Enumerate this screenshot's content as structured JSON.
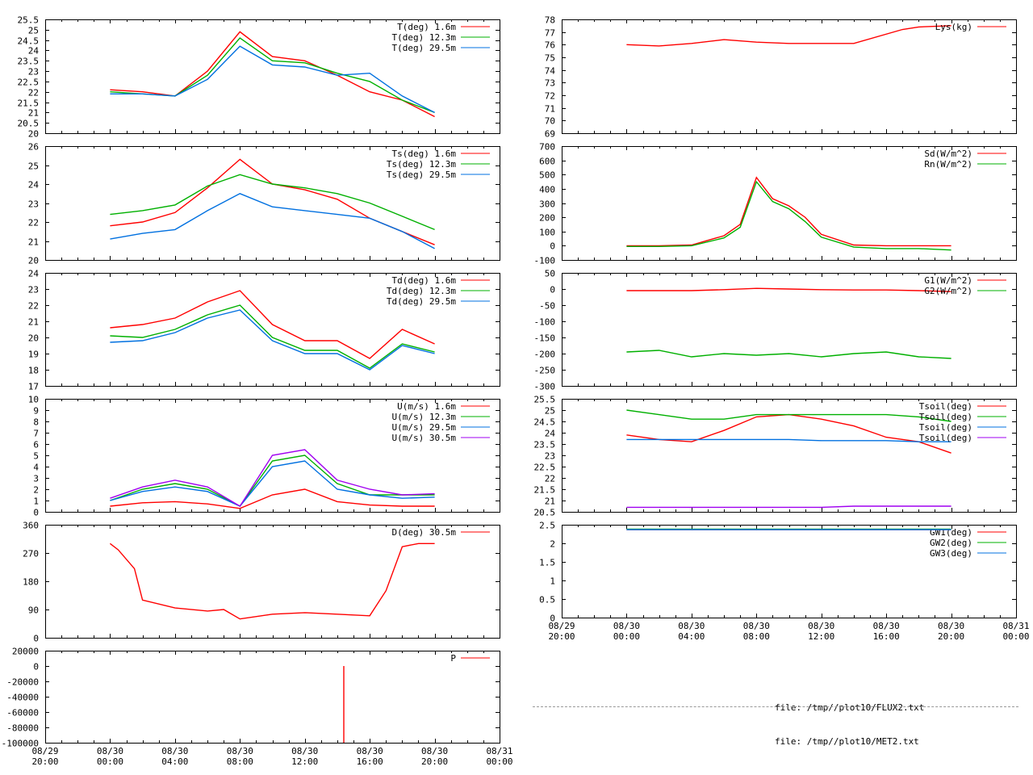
{
  "colors": {
    "red": "#ff0000",
    "green": "#00b000",
    "blue": "#0070e0",
    "purple": "#a000f0",
    "axis": "#000000"
  },
  "time_ticks": [
    "08/29\n20:00",
    "08/30\n00:00",
    "08/30\n04:00",
    "08/30\n08:00",
    "08/30\n12:00",
    "08/30\n16:00",
    "08/30\n20:00",
    "08/31\n00:00"
  ],
  "files": [
    "file: /tmp//plot10/FLUX2.txt",
    "file: /tmp//plot10/MET2.txt"
  ],
  "chart_data": [
    {
      "id": "T",
      "type": "line",
      "ylim": [
        20,
        25.5
      ],
      "yticks": [
        "20",
        "20.5",
        "21",
        "21.5",
        "22",
        "22.5",
        "23",
        "23.5",
        "24",
        "24.5",
        "25",
        "25.5"
      ],
      "x_hours": [
        4.0,
        6.0,
        8.0,
        10.0,
        12.0,
        14.0,
        16.0,
        18.0,
        20.0,
        22.0,
        24.0
      ],
      "series": [
        {
          "name": "T(deg)  1.6m",
          "color": "red",
          "values": [
            22.1,
            22.0,
            21.8,
            23.0,
            24.9,
            23.7,
            23.5,
            22.8,
            22.0,
            21.6,
            20.8
          ]
        },
        {
          "name": "T(deg) 12.3m",
          "color": "green",
          "values": [
            22.0,
            21.9,
            21.8,
            22.8,
            24.6,
            23.5,
            23.4,
            22.9,
            22.5,
            21.6,
            21.0
          ]
        },
        {
          "name": "T(deg) 29.5m",
          "color": "blue",
          "values": [
            21.9,
            21.9,
            21.8,
            22.6,
            24.2,
            23.3,
            23.2,
            22.8,
            22.9,
            21.8,
            21.0
          ]
        }
      ]
    },
    {
      "id": "Ts",
      "type": "line",
      "ylim": [
        20,
        26
      ],
      "yticks": [
        "20",
        "21",
        "22",
        "23",
        "24",
        "25",
        "26"
      ],
      "x_hours": [
        4.0,
        6.0,
        8.0,
        10.0,
        12.0,
        14.0,
        16.0,
        18.0,
        20.0,
        22.0,
        24.0
      ],
      "series": [
        {
          "name": "Ts(deg)  1.6m",
          "color": "red",
          "values": [
            21.8,
            22.0,
            22.5,
            23.8,
            25.3,
            24.0,
            23.7,
            23.2,
            22.2,
            21.5,
            20.8
          ]
        },
        {
          "name": "Ts(deg) 12.3m",
          "color": "green",
          "values": [
            22.4,
            22.6,
            22.9,
            23.9,
            24.5,
            24.0,
            23.8,
            23.5,
            23.0,
            22.3,
            21.6
          ]
        },
        {
          "name": "Ts(deg) 29.5m",
          "color": "blue",
          "values": [
            21.1,
            21.4,
            21.6,
            22.6,
            23.5,
            22.8,
            22.6,
            22.4,
            22.2,
            21.5,
            20.6
          ]
        }
      ]
    },
    {
      "id": "Td",
      "type": "line",
      "ylim": [
        17,
        24
      ],
      "yticks": [
        "17",
        "18",
        "19",
        "20",
        "21",
        "22",
        "23",
        "24"
      ],
      "x_hours": [
        4.0,
        6.0,
        8.0,
        10.0,
        12.0,
        14.0,
        16.0,
        18.0,
        20.0,
        22.0,
        24.0
      ],
      "series": [
        {
          "name": "Td(deg)  1.6m",
          "color": "red",
          "values": [
            20.6,
            20.8,
            21.2,
            22.2,
            22.9,
            20.8,
            19.8,
            19.8,
            18.7,
            20.5,
            19.6
          ]
        },
        {
          "name": "Td(deg) 12.3m",
          "color": "green",
          "values": [
            20.1,
            20.0,
            20.5,
            21.4,
            22.0,
            20.0,
            19.2,
            19.2,
            18.1,
            19.6,
            19.1
          ]
        },
        {
          "name": "Td(deg) 29.5m",
          "color": "blue",
          "values": [
            19.7,
            19.8,
            20.3,
            21.2,
            21.7,
            19.8,
            19.0,
            19.0,
            18.0,
            19.5,
            19.0
          ]
        }
      ]
    },
    {
      "id": "U",
      "type": "line",
      "ylim": [
        0,
        10
      ],
      "yticks": [
        "0",
        "1",
        "2",
        "3",
        "4",
        "5",
        "6",
        "7",
        "8",
        "9",
        "10"
      ],
      "x_hours": [
        4.0,
        6.0,
        8.0,
        10.0,
        12.0,
        14.0,
        16.0,
        18.0,
        20.0,
        22.0,
        24.0
      ],
      "series": [
        {
          "name": "U(m/s)  1.6m",
          "color": "red",
          "values": [
            0.5,
            0.8,
            0.9,
            0.7,
            0.3,
            1.5,
            2.0,
            0.9,
            0.6,
            0.5,
            0.5
          ]
        },
        {
          "name": "U(m/s) 12.3m",
          "color": "green",
          "values": [
            1.0,
            2.0,
            2.5,
            2.0,
            0.5,
            4.5,
            5.0,
            2.5,
            1.5,
            1.5,
            1.5
          ]
        },
        {
          "name": "U(m/s) 29.5m",
          "color": "blue",
          "values": [
            1.0,
            1.8,
            2.2,
            1.8,
            0.5,
            4.0,
            4.5,
            2.0,
            1.5,
            1.2,
            1.3
          ]
        },
        {
          "name": "U(m/s) 30.5m",
          "color": "purple",
          "values": [
            1.2,
            2.2,
            2.8,
            2.2,
            0.5,
            5.0,
            5.5,
            2.8,
            2.0,
            1.5,
            1.6
          ]
        }
      ]
    },
    {
      "id": "D",
      "type": "line",
      "ylim": [
        0,
        360
      ],
      "yticks": [
        "0",
        "90",
        "180",
        "270",
        "360"
      ],
      "x_hours": [
        4.0,
        4.5,
        5.5,
        6.0,
        8.0,
        10.0,
        11.0,
        12.0,
        14.0,
        16.0,
        18.0,
        20.0,
        21.0,
        22.0,
        23.0,
        24.0
      ],
      "series": [
        {
          "name": "D(deg) 30.5m",
          "color": "red",
          "values": [
            300,
            280,
            220,
            120,
            95,
            85,
            90,
            60,
            75,
            80,
            75,
            70,
            150,
            290,
            300,
            300
          ]
        }
      ]
    },
    {
      "id": "P",
      "type": "line",
      "ylim": [
        -100000,
        20000
      ],
      "yticks": [
        "-100000",
        "-80000",
        "-60000",
        "-40000",
        "-20000",
        "0",
        "20000"
      ],
      "x_hours": [
        18.4,
        18.4
      ],
      "series": [
        {
          "name": "P",
          "color": "red",
          "values": [
            -100000,
            0
          ]
        }
      ]
    },
    {
      "id": "Lys",
      "type": "line",
      "ylim": [
        69,
        78
      ],
      "yticks": [
        "69",
        "70",
        "71",
        "72",
        "73",
        "74",
        "75",
        "76",
        "77",
        "78"
      ],
      "x_hours": [
        4.0,
        6.0,
        8.0,
        10.0,
        12.0,
        14.0,
        16.0,
        18.0,
        21.0,
        22.0,
        24.0
      ],
      "series": [
        {
          "name": "Lys(kg)",
          "color": "red",
          "values": [
            76.0,
            75.9,
            76.1,
            76.4,
            76.2,
            76.1,
            76.1,
            76.1,
            77.2,
            77.4,
            77.5
          ]
        }
      ]
    },
    {
      "id": "Rad",
      "type": "line",
      "ylim": [
        -100,
        700
      ],
      "yticks": [
        "-100",
        "0",
        "100",
        "200",
        "300",
        "400",
        "500",
        "600",
        "700"
      ],
      "x_hours": [
        4.0,
        6.0,
        8.0,
        10.0,
        11.0,
        12.0,
        13.0,
        14.0,
        15.0,
        16.0,
        18.0,
        20.0,
        22.0,
        24.0
      ],
      "series": [
        {
          "name": "Sd(W/m^2)",
          "color": "red",
          "values": [
            0,
            0,
            5,
            70,
            150,
            480,
            330,
            280,
            200,
            80,
            5,
            0,
            0,
            0
          ]
        },
        {
          "name": "Rn(W/m^2)",
          "color": "green",
          "values": [
            -5,
            -5,
            0,
            55,
            130,
            450,
            310,
            260,
            170,
            60,
            -10,
            -20,
            -20,
            -30
          ]
        }
      ]
    },
    {
      "id": "G",
      "type": "line",
      "ylim": [
        -300,
        50
      ],
      "yticks": [
        "-300",
        "-250",
        "-200",
        "-150",
        "-100",
        "-50",
        "0",
        "50"
      ],
      "x_hours": [
        4.0,
        6.0,
        8.0,
        10.0,
        12.0,
        14.0,
        16.0,
        18.0,
        20.0,
        22.0,
        24.0
      ],
      "series": [
        {
          "name": "G1(W/m^2)",
          "color": "red",
          "values": [
            -5,
            -5,
            -5,
            -2,
            2,
            0,
            -2,
            -3,
            -3,
            -5,
            -8
          ]
        },
        {
          "name": "G2(W/m^2)",
          "color": "green",
          "values": [
            -195,
            -190,
            -210,
            -200,
            -205,
            -200,
            -210,
            -200,
            -195,
            -210,
            -215
          ]
        }
      ]
    },
    {
      "id": "Tsoil",
      "type": "line",
      "ylim": [
        20.5,
        25.5
      ],
      "yticks": [
        "20.5",
        "21",
        "21.5",
        "22",
        "22.5",
        "23",
        "23.5",
        "24",
        "24.5",
        "25",
        "25.5"
      ],
      "x_hours": [
        4.0,
        6.0,
        8.0,
        10.0,
        12.0,
        14.0,
        16.0,
        18.0,
        20.0,
        22.0,
        24.0
      ],
      "series": [
        {
          "name": "Tsoil(deg)",
          "color": "red",
          "values": [
            23.9,
            23.7,
            23.6,
            24.1,
            24.7,
            24.8,
            24.6,
            24.3,
            23.8,
            23.6,
            23.1
          ]
        },
        {
          "name": "Tsoil(deg)",
          "color": "green",
          "values": [
            25.0,
            24.8,
            24.6,
            24.6,
            24.8,
            24.8,
            24.8,
            24.8,
            24.8,
            24.7,
            24.5
          ]
        },
        {
          "name": "Tsoil(deg)",
          "color": "blue",
          "values": [
            23.7,
            23.7,
            23.7,
            23.7,
            23.7,
            23.7,
            23.65,
            23.65,
            23.65,
            23.6,
            23.6
          ]
        },
        {
          "name": "Tsoil(deg)",
          "color": "purple",
          "values": [
            20.7,
            20.7,
            20.7,
            20.7,
            20.7,
            20.7,
            20.7,
            20.75,
            20.75,
            20.75,
            20.75
          ]
        }
      ]
    },
    {
      "id": "GW",
      "type": "line",
      "ylim": [
        0,
        2.5
      ],
      "yticks": [
        "0",
        "0.5",
        "1",
        "1.5",
        "2",
        "2.5"
      ],
      "x_hours": [
        4.0,
        24.0
      ],
      "series": [
        {
          "name": "GW1(deg)",
          "color": "red",
          "values": [
            2.37,
            2.37
          ]
        },
        {
          "name": "GW2(deg)",
          "color": "green",
          "values": [
            2.38,
            2.38
          ]
        },
        {
          "name": "GW3(deg)",
          "color": "blue",
          "values": [
            2.37,
            2.37
          ]
        }
      ]
    }
  ]
}
